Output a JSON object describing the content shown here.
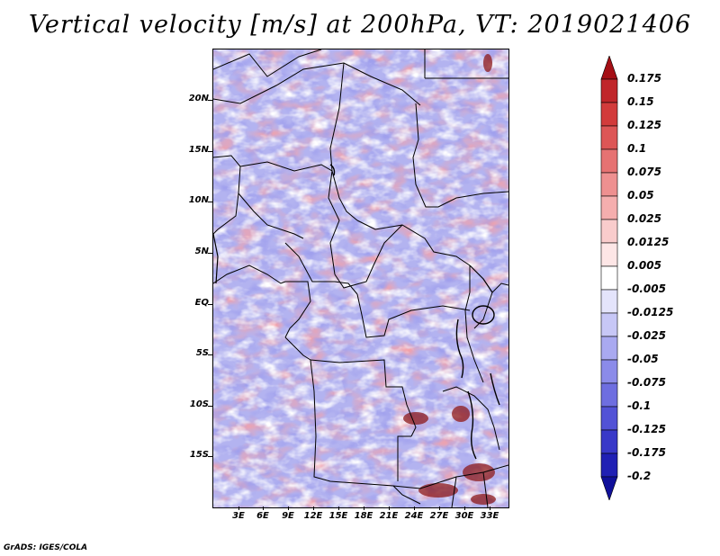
{
  "title": "Vertical velocity [m/s] at 200hPa, VT: 2019021406",
  "credit": "GrADS: IGES/COLA",
  "lat_labels": [
    "20N",
    "15N",
    "10N",
    "5N",
    "EQ",
    "5S",
    "10S",
    "15S"
  ],
  "lon_labels": [
    "3E",
    "6E",
    "9E",
    "12E",
    "15E",
    "18E",
    "21E",
    "24E",
    "27E",
    "30E",
    "33E"
  ],
  "colorbar": {
    "labels": [
      "0.175",
      "0.15",
      "0.125",
      "0.1",
      "0.075",
      "0.05",
      "0.025",
      "0.0125",
      "0.005",
      "-0.005",
      "-0.0125",
      "-0.025",
      "-0.05",
      "-0.075",
      "-0.1",
      "-0.125",
      "-0.175",
      "-0.2"
    ],
    "colors": [
      "#a50f15",
      "#c0262a",
      "#d23b3b",
      "#dd5656",
      "#e67272",
      "#ee9090",
      "#f5aeae",
      "#f9cccc",
      "#fde6e6",
      "#ffffff",
      "#e4e4fb",
      "#c7c7f6",
      "#a9a9f0",
      "#8b8be9",
      "#6e6ee0",
      "#5252d6",
      "#3838c8",
      "#2020b4",
      "#10109a"
    ]
  }
}
